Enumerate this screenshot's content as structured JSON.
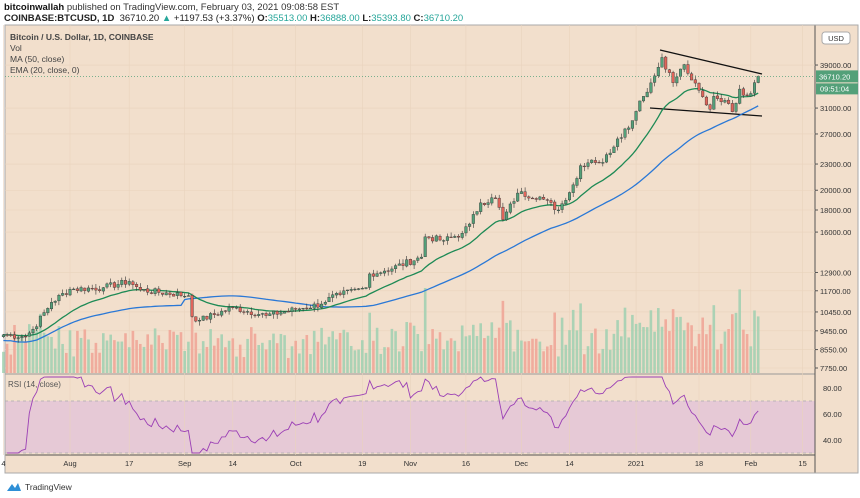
{
  "header": {
    "author": "bitcoinwallah",
    "published": "published on TradingView.com, February 03, 2021 09:08:58 EST",
    "symbol": "COINBASE:BTCUSD, 1D",
    "last": "36710.20",
    "change": "+1197.53 (+3.37%)",
    "o_label": "O:",
    "o": "35513.00",
    "h_label": "H:",
    "h": "36888.00",
    "l_label": "L:",
    "l": "35393.80",
    "c_label": "C:",
    "c": "36710.20"
  },
  "legend": {
    "title": "Bitcoin / U.S. Dollar, 1D, COINBASE",
    "vol": "Vol",
    "ma": "MA (50, close)",
    "ema": "EMA (20, close, 0)",
    "rsi": "RSI (14, close)"
  },
  "footer": {
    "brand": "TradingView"
  },
  "colors": {
    "bg": "#f2dfcc",
    "up": "#53a079",
    "down": "#e0645a",
    "ema": "#1d8a55",
    "ma": "#2a78d6",
    "rsi": "#9b3fb5",
    "rsi_band": "#e6c9d6",
    "price_tag": "#53a079"
  },
  "chart_data": {
    "type": "candlestick",
    "price_scale": "log",
    "currency": "USD",
    "price_ticks": [
      "39000.00",
      "31000.00",
      "27000.00",
      "23000.00",
      "20000.00",
      "18000.00",
      "16000.00",
      "12900.00",
      "11700.00",
      "10450.00",
      "9450.00",
      "8550.00",
      "7750.00"
    ],
    "price_tick_values": [
      39000,
      31000,
      27000,
      23000,
      20000,
      18000,
      16000,
      12900,
      11700,
      10450,
      9450,
      8550,
      7750
    ],
    "last_price_label": "36710.20",
    "countdown": "09:51:04",
    "x_ticks": [
      "4",
      "Aug",
      "17",
      "Sep",
      "14",
      "Oct",
      "19",
      "Nov",
      "16",
      "Dec",
      "14",
      "2021",
      "18",
      "Feb",
      "15"
    ],
    "x_tick_dates": [
      "2020-07-14",
      "2020-08-01",
      "2020-08-17",
      "2020-09-01",
      "2020-09-14",
      "2020-10-01",
      "2020-10-19",
      "2020-11-01",
      "2020-11-16",
      "2020-12-01",
      "2020-12-14",
      "2021-01-01",
      "2021-01-18",
      "2021-02-01",
      "2021-02-15"
    ],
    "close_keypoints": [
      [
        "2020-07-14",
        9250
      ],
      [
        "2020-07-20",
        9160
      ],
      [
        "2020-07-22",
        9530
      ],
      [
        "2020-07-27",
        11000
      ],
      [
        "2020-08-01",
        11800
      ],
      [
        "2020-08-10",
        11900
      ],
      [
        "2020-08-17",
        12300
      ],
      [
        "2020-08-20",
        11750
      ],
      [
        "2020-09-02",
        11400
      ],
      [
        "2020-09-03",
        10200
      ],
      [
        "2020-09-05",
        10000
      ],
      [
        "2020-09-14",
        10700
      ],
      [
        "2020-09-23",
        10250
      ],
      [
        "2020-10-01",
        10600
      ],
      [
        "2020-10-08",
        10900
      ],
      [
        "2020-10-10",
        11300
      ],
      [
        "2020-10-13",
        11450
      ],
      [
        "2020-10-20",
        11900
      ],
      [
        "2020-10-21",
        12800
      ],
      [
        "2020-10-25",
        13000
      ],
      [
        "2020-11-04",
        14000
      ],
      [
        "2020-11-05",
        15600
      ],
      [
        "2020-11-10",
        15300
      ],
      [
        "2020-11-15",
        15900
      ],
      [
        "2020-11-17",
        16700
      ],
      [
        "2020-11-20",
        18700
      ],
      [
        "2020-11-24",
        19200
      ],
      [
        "2020-11-26",
        17100
      ],
      [
        "2020-11-30",
        19700
      ],
      [
        "2020-12-06",
        19300
      ],
      [
        "2020-12-11",
        18000
      ],
      [
        "2020-12-16",
        21300
      ],
      [
        "2020-12-17",
        22800
      ],
      [
        "2020-12-20",
        23500
      ],
      [
        "2020-12-23",
        23200
      ],
      [
        "2020-12-27",
        26300
      ],
      [
        "2020-12-31",
        29000
      ],
      [
        "2021-01-02",
        32200
      ],
      [
        "2021-01-03",
        33000
      ],
      [
        "2021-01-06",
        36800
      ],
      [
        "2021-01-08",
        40600
      ],
      [
        "2021-01-11",
        35500
      ],
      [
        "2021-01-14",
        39100
      ],
      [
        "2021-01-16",
        36000
      ],
      [
        "2021-01-21",
        30800
      ],
      [
        "2021-01-22",
        33000
      ],
      [
        "2021-01-25",
        32300
      ],
      [
        "2021-01-27",
        30400
      ],
      [
        "2021-01-29",
        34300
      ],
      [
        "2021-01-31",
        33100
      ],
      [
        "2021-02-01",
        33500
      ],
      [
        "2021-02-02",
        35500
      ],
      [
        "2021-02-03",
        36710.2
      ]
    ],
    "indicators": [
      "Vol",
      "MA 50",
      "EMA 20",
      "RSI 14"
    ],
    "rsi_ticks": [
      "80.00",
      "60.00",
      "40.00"
    ],
    "rsi_band": [
      30,
      70
    ]
  }
}
